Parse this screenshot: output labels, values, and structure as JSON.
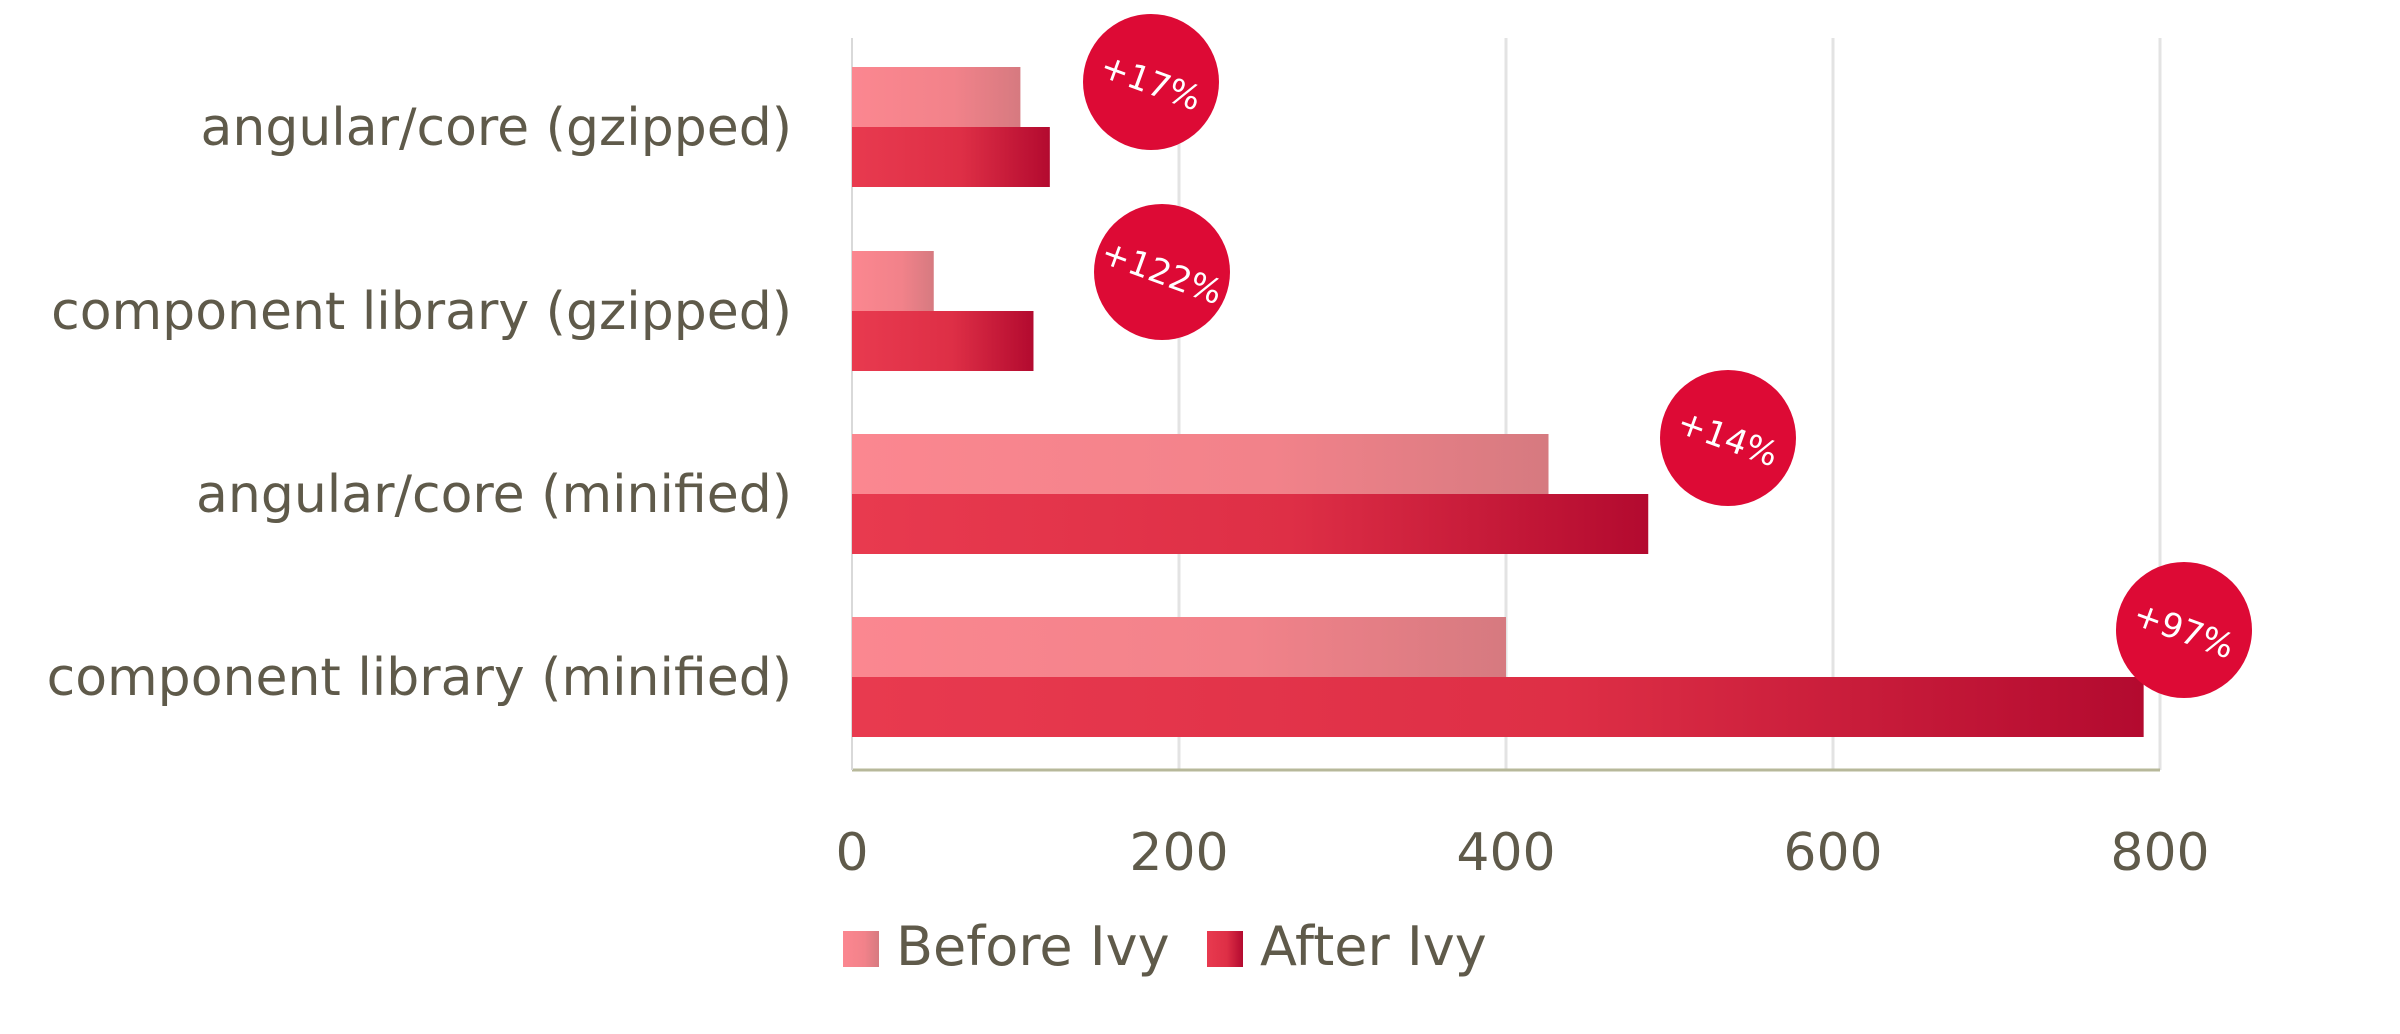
{
  "chart_data": {
    "type": "bar",
    "orientation": "horizontal",
    "categories": [
      "angular/core (gzipped)",
      "component library (gzipped)",
      "angular/core (minified)",
      "component library (minified)"
    ],
    "series": [
      {
        "name": "Before Ivy",
        "values": [
          103,
          50,
          426,
          400
        ],
        "color": "#f5838b"
      },
      {
        "name": "After Ivy",
        "values": [
          121,
          111,
          487,
          790
        ],
        "color": "#d42a45"
      }
    ],
    "annotations": [
      "+17%",
      "+122%",
      "+14%",
      "+97%"
    ],
    "annotation_color": "#dd0a35",
    "xlim": [
      0,
      800
    ],
    "xticks": [
      "0",
      "200",
      "400",
      "600",
      "800"
    ],
    "grid": true,
    "legend_position": "bottom",
    "title": "",
    "xlabel": "",
    "ylabel": ""
  }
}
